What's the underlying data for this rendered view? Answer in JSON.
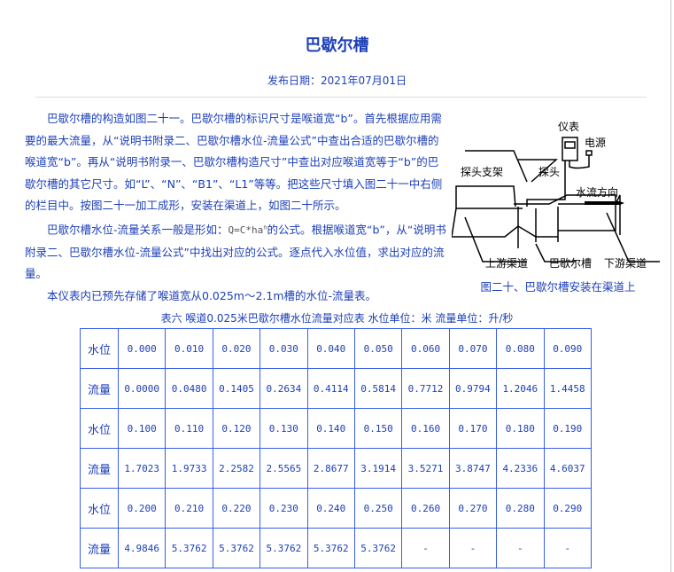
{
  "title": "巴歇尔槽",
  "publish_date": "发布日期：2021年07月01日",
  "paragraphs": [
    "巴歇尔槽的构造如图二十一。巴歇尔槽的标识尺寸是喉道宽“b”。首先根据应用需要的最大流量，从“说明书附录二、巴歇尔槽水位-流量公式”中查出合适的巴歇尔槽的喉道宽“b”。再从“说明书附录一、巴歇尔槽构造尺寸”中查出对应喉道宽等于“b”的巴歇尔槽的其它尺寸。如“L”、“N”、“B1”、“L1”等等。把这些尺寸填入图二十一中右侧的栏目中。按图二十一加工成形，安装在渠道上，如图二十所示。",
    "本仪表内已预先存储了喉道宽从0.025m～2.1m槽的水位-流量表。"
  ],
  "para2": {
    "before": "巴歇尔槽水位-流量关系一般是形如：",
    "formula": "Q=C*ha",
    "sup": "n",
    "after": "的公式。根据喉道宽“b”，从“说明书附录二、巴歇尔槽水位-流量公式”中找出对应的公式。逐点代入水位值，求出对应的流量。"
  },
  "figure": {
    "caption": "图二十、巴歇尔槽安装在渠道上",
    "labels": {
      "meter": "仪表",
      "power": "电源",
      "probe_bracket": "探头支架",
      "probe": "探头",
      "flow_direction": "水流方向",
      "upstream": "上游渠道",
      "flume": "巴歇尔槽",
      "downstream": "下游渠道"
    }
  },
  "table": {
    "caption": "表六 喉道0.025米巴歇尔槽水位流量对应表 水位单位：米 流量单位：升/秒",
    "rows": [
      {
        "label": "水位",
        "values": [
          "0.000",
          "0.010",
          "0.020",
          "0.030",
          "0.040",
          "0.050",
          "0.060",
          "0.070",
          "0.080",
          "0.090"
        ]
      },
      {
        "label": "流量",
        "values": [
          "0.0000",
          "0.0480",
          "0.1405",
          "0.2634",
          "0.4114",
          "0.5814",
          "0.7712",
          "0.9794",
          "1.2046",
          "1.4458"
        ]
      },
      {
        "label": "水位",
        "values": [
          "0.100",
          "0.110",
          "0.120",
          "0.130",
          "0.140",
          "0.150",
          "0.160",
          "0.170",
          "0.180",
          "0.190"
        ]
      },
      {
        "label": "流量",
        "values": [
          "1.7023",
          "1.9733",
          "2.2582",
          "2.5565",
          "2.8677",
          "3.1914",
          "3.5271",
          "3.8747",
          "4.2336",
          "4.6037"
        ]
      },
      {
        "label": "水位",
        "values": [
          "0.200",
          "0.210",
          "0.220",
          "0.230",
          "0.240",
          "0.250",
          "0.260",
          "0.270",
          "0.280",
          "0.290"
        ]
      },
      {
        "label": "流量",
        "values": [
          "4.9846",
          "5.3762",
          "5.3762",
          "5.3762",
          "5.3762",
          "5.3762",
          "-",
          "-",
          "-",
          "-"
        ]
      }
    ]
  }
}
